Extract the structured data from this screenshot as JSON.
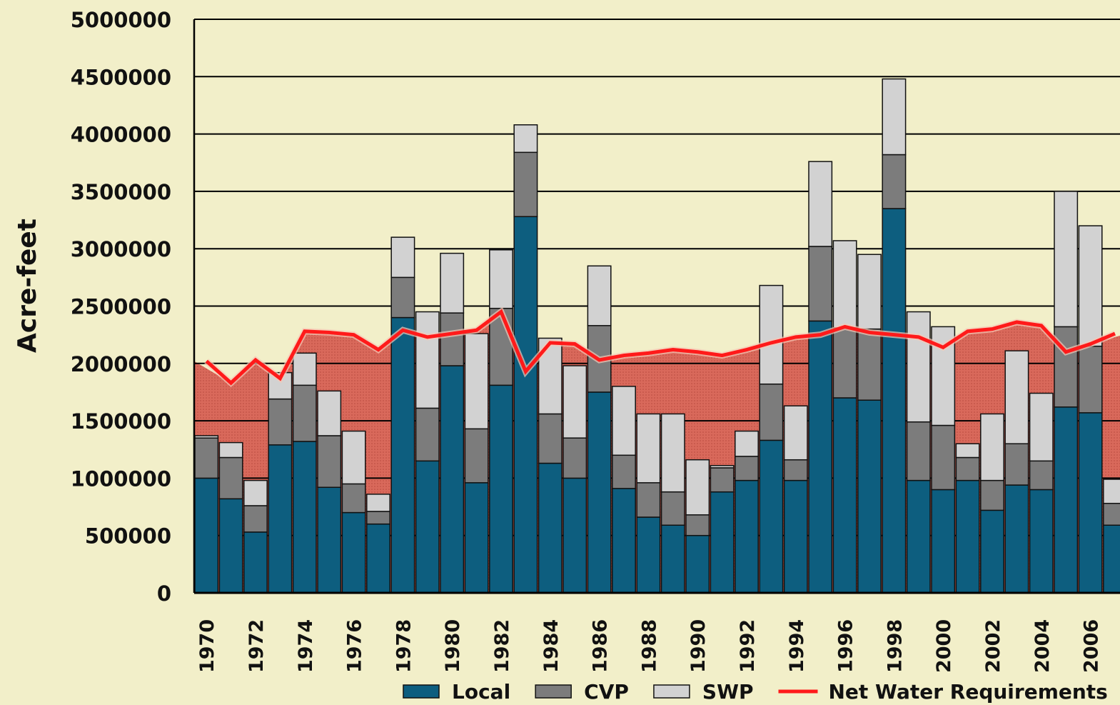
{
  "chart_data": {
    "type": "bar",
    "stacked": true,
    "y_label": "Acre-feet",
    "categories": [
      "1970",
      null,
      "1972",
      null,
      "1974",
      null,
      "1976",
      null,
      "1978",
      null,
      "1980",
      null,
      "1982",
      null,
      "1984",
      null,
      "1986",
      null,
      "1988",
      null,
      "1990",
      null,
      "1992",
      null,
      "1994",
      null,
      "1996",
      null,
      "1998",
      null,
      "2000",
      null,
      "2002",
      null,
      "2004",
      null,
      "2006",
      null
    ],
    "series": [
      {
        "name": "Local",
        "color": "#0d5e7f",
        "values": [
          1000000,
          820000,
          530000,
          1290000,
          1320000,
          920000,
          700000,
          600000,
          2400000,
          1150000,
          1980000,
          960000,
          1810000,
          3280000,
          1130000,
          1000000,
          1750000,
          910000,
          660000,
          590000,
          500000,
          880000,
          980000,
          1330000,
          980000,
          2370000,
          1700000,
          1680000,
          3350000,
          980000,
          900000,
          980000,
          720000,
          940000,
          900000,
          1620000,
          1570000,
          590000
        ]
      },
      {
        "name": "CVP",
        "color": "#7c7c7c",
        "values": [
          350000,
          360000,
          230000,
          400000,
          490000,
          450000,
          250000,
          110000,
          350000,
          460000,
          460000,
          470000,
          670000,
          560000,
          430000,
          350000,
          580000,
          290000,
          300000,
          290000,
          180000,
          210000,
          210000,
          490000,
          180000,
          650000,
          610000,
          620000,
          470000,
          510000,
          560000,
          200000,
          260000,
          360000,
          250000,
          700000,
          580000,
          190000
        ]
      },
      {
        "name": "SWP",
        "color": "#d2d2d2",
        "values": [
          20000,
          130000,
          220000,
          230000,
          280000,
          390000,
          460000,
          150000,
          350000,
          840000,
          520000,
          830000,
          510000,
          240000,
          660000,
          630000,
          520000,
          600000,
          600000,
          680000,
          480000,
          20000,
          220000,
          860000,
          470000,
          740000,
          760000,
          650000,
          660000,
          960000,
          860000,
          120000,
          580000,
          810000,
          590000,
          1180000,
          1050000,
          210000
        ]
      },
      {
        "name": "Net Water Requirements",
        "type": "line",
        "color": "#ff1a1a",
        "values": [
          2020000,
          1830000,
          2030000,
          1870000,
          2280000,
          2270000,
          2250000,
          2120000,
          2290000,
          2230000,
          2260000,
          2290000,
          2450000,
          1930000,
          2180000,
          2170000,
          2030000,
          2070000,
          2090000,
          2120000,
          2100000,
          2070000,
          2120000,
          2180000,
          2230000,
          2250000,
          2320000,
          2270000,
          2250000,
          2230000,
          2140000,
          2280000,
          2300000,
          2360000,
          2330000,
          2100000,
          2170000,
          2260000
        ]
      }
    ],
    "ylim": [
      0,
      5000000
    ],
    "yticks": [
      0,
      500000,
      1000000,
      1500000,
      2000000,
      2500000,
      3000000,
      3500000,
      4000000,
      4500000,
      5000000
    ],
    "grid": true,
    "legend": "bottom"
  }
}
